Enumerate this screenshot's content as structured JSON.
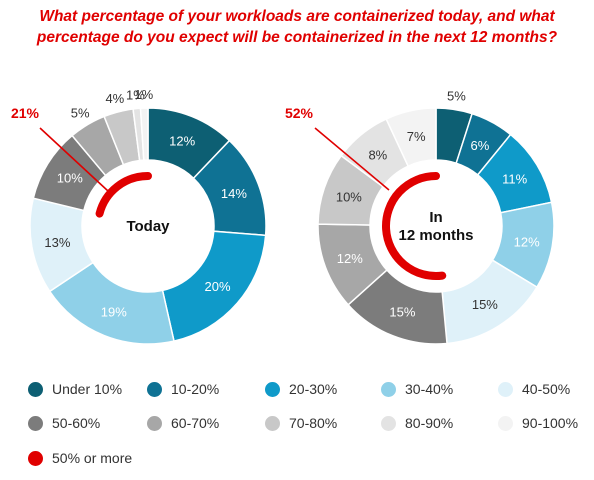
{
  "title": {
    "line1": "What percentage of your workloads are containerized today, and what",
    "line2": "percentage do you expect will be containerized in the next 12 months?"
  },
  "legend": [
    {
      "label": "Under 10%",
      "color": "#0d5f73"
    },
    {
      "label": "10-20%",
      "color": "#0f7294"
    },
    {
      "label": "20-30%",
      "color": "#0f9ac9"
    },
    {
      "label": "30-40%",
      "color": "#8fd0e8"
    },
    {
      "label": "40-50%",
      "color": "#dff1f9"
    },
    {
      "label": "50-60%",
      "color": "#7c7c7c"
    },
    {
      "label": "60-70%",
      "color": "#a7a7a7"
    },
    {
      "label": "70-80%",
      "color": "#c8c8c8"
    },
    {
      "label": "80-90%",
      "color": "#e3e3e3"
    },
    {
      "label": "90-100%",
      "color": "#f3f3f3"
    },
    {
      "label": "50% or more",
      "color": "#e00000"
    }
  ],
  "chart_data": [
    {
      "type": "pie",
      "center_label": [
        "Today"
      ],
      "categories": [
        "Under 10%",
        "10-20%",
        "20-30%",
        "30-40%",
        "40-50%",
        "50-60%",
        "60-70%",
        "70-80%",
        "80-90%",
        "90-100%"
      ],
      "value_labels": [
        "12%",
        "14%",
        "20%",
        "19%",
        "13%",
        "10%",
        "5%",
        "4%",
        "1%",
        "1%"
      ],
      "values": [
        12,
        14,
        20,
        19,
        13,
        10,
        5,
        4,
        1,
        1
      ],
      "highlight": {
        "label": "21%",
        "value": 21,
        "series": "50% or more"
      }
    },
    {
      "type": "pie",
      "center_label": [
        "In",
        "12 months"
      ],
      "categories": [
        "Under 10%",
        "10-20%",
        "20-30%",
        "30-40%",
        "40-50%",
        "50-60%",
        "60-70%",
        "70-80%",
        "80-90%",
        "90-100%"
      ],
      "value_labels": [
        "5%",
        "6%",
        "11%",
        "12%",
        "15%",
        "15%",
        "12%",
        "10%",
        "8%",
        "7%"
      ],
      "values": [
        5,
        6,
        11,
        12,
        15,
        15,
        12,
        10,
        8,
        7
      ],
      "highlight": {
        "label": "52%",
        "value": 52,
        "series": "50% or more"
      }
    }
  ]
}
